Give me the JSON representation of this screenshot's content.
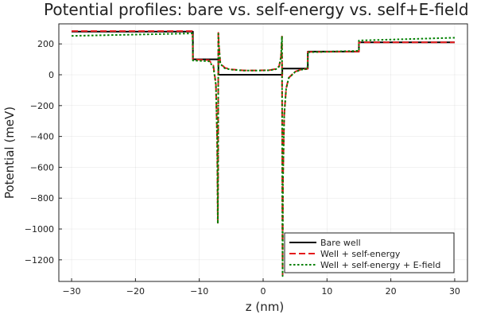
{
  "chart_data": {
    "type": "line",
    "title": "Potential profiles: bare vs. self-energy vs. self+E-field",
    "xlabel": "z (nm)",
    "ylabel": "Potential (meV)",
    "xlim": [
      -32,
      32
    ],
    "ylim": [
      -1340,
      330
    ],
    "xticks": [
      -30,
      -20,
      -10,
      0,
      10,
      20,
      30
    ],
    "yticks": [
      -1200,
      -1000,
      -800,
      -600,
      -400,
      -200,
      0,
      200
    ],
    "grid": true,
    "legend_position": "bottom-right",
    "series": [
      {
        "name": "Bare well",
        "color": "#000000",
        "style": "solid",
        "points": [
          [
            -30,
            280
          ],
          [
            -11,
            280
          ],
          [
            -11,
            100
          ],
          [
            -7,
            100
          ],
          [
            -7,
            0
          ],
          [
            3,
            0
          ],
          [
            3,
            40
          ],
          [
            7,
            40
          ],
          [
            7,
            150
          ],
          [
            15,
            150
          ],
          [
            15,
            210
          ],
          [
            30,
            210
          ]
        ]
      },
      {
        "name": "Well + self-energy",
        "color": "#e41a1c",
        "style": "dashed",
        "points": [
          [
            -30,
            283
          ],
          [
            -11.05,
            283
          ],
          [
            -11,
            100
          ],
          [
            -8.5,
            95
          ],
          [
            -7.8,
            60
          ],
          [
            -7.4,
            -60
          ],
          [
            -7.2,
            -420
          ],
          [
            -7.1,
            -960
          ],
          [
            -7.05,
            -600
          ],
          [
            -7.02,
            272
          ],
          [
            -6.95,
            200
          ],
          [
            -6.7,
            75
          ],
          [
            -6,
            45
          ],
          [
            -5,
            35
          ],
          [
            -3,
            28
          ],
          [
            -1,
            28
          ],
          [
            1,
            30
          ],
          [
            2,
            38
          ],
          [
            2.5,
            55
          ],
          [
            2.8,
            120
          ],
          [
            2.95,
            248
          ],
          [
            3,
            -800
          ],
          [
            3.05,
            -1300
          ],
          [
            3.1,
            -700
          ],
          [
            3.3,
            -260
          ],
          [
            3.6,
            -90
          ],
          [
            4,
            -20
          ],
          [
            5,
            20
          ],
          [
            6,
            35
          ],
          [
            6.95,
            38
          ],
          [
            7,
            148
          ],
          [
            15,
            150
          ],
          [
            15,
            210
          ],
          [
            30,
            210
          ]
        ]
      },
      {
        "name": "Well + self-energy + E-field",
        "color": "#008000",
        "style": "dotted",
        "points": [
          [
            -30,
            252
          ],
          [
            -11.05,
            268
          ],
          [
            -11,
            92
          ],
          [
            -8.5,
            88
          ],
          [
            -7.8,
            52
          ],
          [
            -7.4,
            -66
          ],
          [
            -7.2,
            -425
          ],
          [
            -7.1,
            -965
          ],
          [
            -7.05,
            -605
          ],
          [
            -7.02,
            276
          ],
          [
            -6.95,
            205
          ],
          [
            -6.7,
            70
          ],
          [
            -6,
            42
          ],
          [
            -5,
            33
          ],
          [
            -3,
            27
          ],
          [
            -1,
            27
          ],
          [
            1,
            29
          ],
          [
            2,
            36
          ],
          [
            2.5,
            53
          ],
          [
            2.8,
            118
          ],
          [
            2.95,
            250
          ],
          [
            3,
            -805
          ],
          [
            3.05,
            -1305
          ],
          [
            3.1,
            -702
          ],
          [
            3.3,
            -262
          ],
          [
            3.6,
            -92
          ],
          [
            4,
            -22
          ],
          [
            5,
            18
          ],
          [
            6,
            33
          ],
          [
            6.95,
            37
          ],
          [
            7,
            146
          ],
          [
            15,
            155
          ],
          [
            15,
            222
          ],
          [
            30,
            240
          ]
        ]
      }
    ]
  }
}
